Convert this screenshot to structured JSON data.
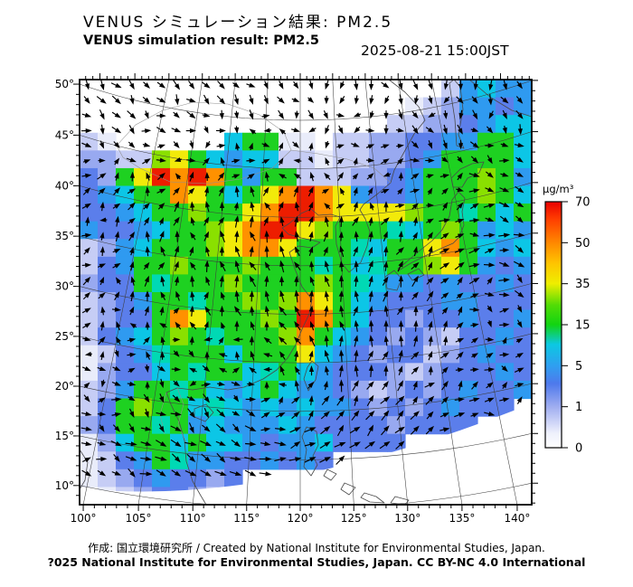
{
  "header": {
    "title_jp": "VENUS シミュレーション結果: PM2.5",
    "title_en": "VENUS simulation result: PM2.5",
    "datetime": "2025-08-21 15:00JST"
  },
  "footer": {
    "line1": "作成: 国立環境研究所 / Created by National Institute for Environmental Studies, Japan.",
    "line2": "?025 National Institute for Environmental Studies, Japan. CC BY-NC 4.0 International"
  },
  "chart_data": {
    "type": "heatmap",
    "title": "VENUS simulation result: PM2.5",
    "variable": "PM2.5 surface concentration",
    "units": "µg/m³",
    "timestamp": "2025-08-21 15:00JST",
    "projection": "conic (Lambert-like) with curved graticule over East Asia",
    "xlabel": "longitude (°E)",
    "ylabel": "latitude (°N)",
    "lon_range": [
      100,
      140
    ],
    "lat_range": [
      10,
      50
    ],
    "axes": {
      "x_tick_lons": [
        100,
        105,
        110,
        115,
        120,
        125,
        130,
        135,
        140
      ],
      "x_tick_labels": [
        "100°",
        "105°",
        "110°",
        "115°",
        "120°",
        "125°",
        "130°",
        "135°",
        "140°"
      ],
      "y_tick_lats": [
        10,
        15,
        20,
        25,
        30,
        35,
        40,
        45,
        50
      ],
      "y_tick_labels": [
        "10°",
        "15°",
        "20°",
        "25°",
        "30°",
        "35°",
        "40°",
        "45°",
        "50°"
      ]
    },
    "colorbar": {
      "label": "µg/m³",
      "tick_values": [
        0,
        1,
        5,
        15,
        35,
        50,
        70
      ],
      "tick_labels": [
        "0",
        "1",
        "5",
        "15",
        "35",
        "50",
        "70"
      ],
      "orientation": "vertical, right side, equal spacing per tick interval",
      "gradient": [
        {
          "offset": 0.0,
          "color": "#ffffff"
        },
        {
          "offset": 0.06,
          "color": "#eef0fc"
        },
        {
          "offset": 0.167,
          "color": "#9fadf0"
        },
        {
          "offset": 0.26,
          "color": "#4e79ec"
        },
        {
          "offset": 0.333,
          "color": "#2f9ff0"
        },
        {
          "offset": 0.42,
          "color": "#0cc8e2"
        },
        {
          "offset": 0.5,
          "color": "#11d411"
        },
        {
          "offset": 0.58,
          "color": "#52dc06"
        },
        {
          "offset": 0.667,
          "color": "#eeee00"
        },
        {
          "offset": 0.75,
          "color": "#ffc400"
        },
        {
          "offset": 0.833,
          "color": "#ff8800"
        },
        {
          "offset": 0.93,
          "color": "#ff3d00"
        },
        {
          "offset": 1.0,
          "color": "#e90000"
        }
      ]
    },
    "wind_overlay": "black wind-vector arrows on a regular ~16 px grid over the whole simulation domain",
    "annotations": [
      "red PM2.5 streak over NW China / Inner Mongolia (~105-110E, 40-42N)",
      "large red/orange hotspot over North China Plain (~114-118E, 35-39N)",
      "yellow band across the Yellow Sea (~120-127E, ~35N)",
      "orange/red strip along Fujian coast (~119-120E, 26-30N)",
      "yellow-orange spot over central Japan (~137-139E, 35N)",
      "white out-of-domain wedge in the south below a diagonal from (100E,10N) toward (140E,~22N)"
    ],
    "grid": {
      "cols": 25,
      "rows": 24,
      "cell_values_ugm3": {
        "W": 0,
        "F": 0.3,
        "P": 0.7,
        "L": 1.5,
        "B": 3,
        "C": 5,
        "T": 8,
        "A": 11,
        "G": 18,
        "E": 27,
        "Y": 38,
        "O": 50,
        "R": 68
      },
      "palette": {
        "W": "#ffffff",
        "F": "#e9ecfa",
        "P": "#c6cdf5",
        "L": "#98a9f0",
        "B": "#5b7eeb",
        "C": "#2f9af0",
        "T": "#0cc6e6",
        "A": "#00d9b4",
        "G": "#1ed121",
        "E": "#8ae000",
        "Y": "#f2ea0a",
        "O": "#ff9100",
        "R": "#ed1d00"
      },
      "rows_data": [
        "WWWWWWWWWWWWWWWWWWWWPCTCC",
        "WWWWWWWWWWWWWWWWWWFPLCCBC",
        "WWWWWWWWWWWWWWWWWPPLLBCTT",
        "PFWWWWWWTGGFFWPPLLBBCCGGT",
        "LLPPEYGTCTTPPFPPLLBCGGGGT",
        "BLGYROROGCGGPPPLLBCGGGEGC",
        "BCTGGOYGTGYOROYCBBCGGGEGT",
        "BBCTGGEGGYORROYYYYEGGAGTG",
        "CBBCTGGEYORRYEGGGATGEGCTC",
        "PLCTGGGEYOOYGGGATGGYOGTCT",
        "PBCGGEGGGEGGGAGTAGGEYGCBC",
        "LBBGAGGGEGGGGEGATCCBCBBCB",
        "PLBCGGAGGEGEOYGTCBBBCCBBB",
        "PLBBGOYGGGEGROGTBBLBBCBBC",
        "PBCTGEGAGGGEOGTCBLBLPBBCB",
        "FPBCAGGGTGGGYTCBLBBPLBCBB",
        "FLBBTGAGGTAGTCBBBLPLBBBCB",
        "PLCGGAGTCTGTCCBLPLBLBCBBC",
        "PBGEGGTATCTCTCCBLBLBCBBB.",
        "LBGGAGCTCCCTCBBBBLBBBB...",
        "FLTGGTGTTCBCCTBBBB.......",
        "FPBCGACCBBCBCB...........",
        "FPLBCBBLB................",
        ".FPLBBLP................."
      ]
    }
  }
}
